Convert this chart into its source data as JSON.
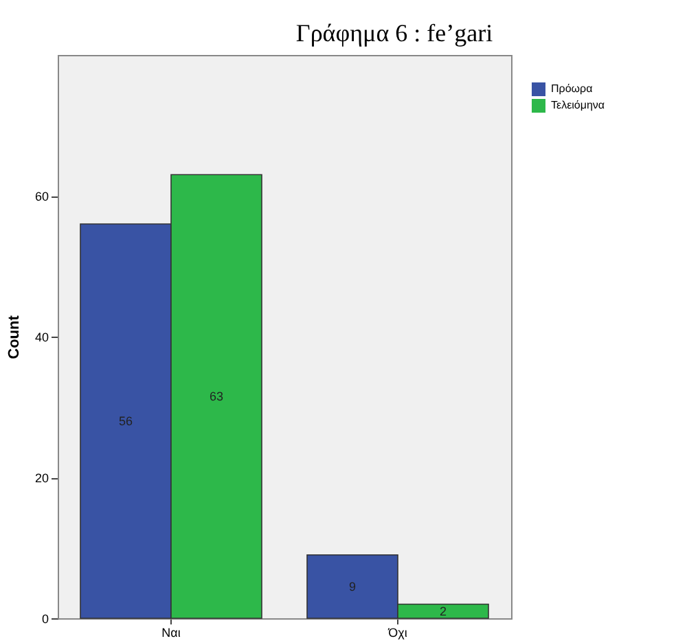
{
  "chart_data": {
    "type": "bar",
    "title": "Γράφημα 6 : fe’gari",
    "ylabel": "Count",
    "categories": [
      "Ναι",
      "Όχι"
    ],
    "series": [
      {
        "name": "Πρόωρα",
        "color": "#3953a4",
        "values": [
          56,
          9
        ]
      },
      {
        "name": "Τελειόμηνα",
        "color": "#2db84a",
        "values": [
          63,
          2
        ]
      }
    ],
    "ylim": [
      0,
      80
    ],
    "yticks": [
      0,
      20,
      40,
      60
    ],
    "data_labels": true,
    "legend": "top right"
  }
}
